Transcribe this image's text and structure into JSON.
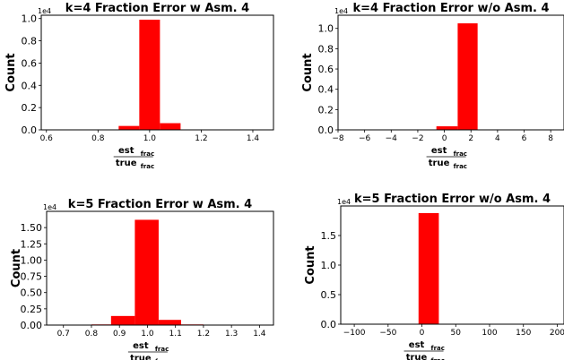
{
  "chart_data": [
    {
      "type": "bar",
      "title": "k=4 Fraction Error w Asm. 4",
      "ylabel": "Count",
      "xlabel_num": "est",
      "xlabel_den": "true",
      "xlabel_sub": "frac",
      "sci_label": "1e4",
      "xlim": [
        0.58,
        1.48
      ],
      "ylim": [
        0,
        1.03
      ],
      "xticks": [
        "0.6",
        "0.8",
        "1.0",
        "1.2",
        "1.4"
      ],
      "xtick_values": [
        0.6,
        0.8,
        1.0,
        1.2,
        1.4
      ],
      "yticks": [
        "0.0",
        "0.2",
        "0.4",
        "0.6",
        "0.8",
        "1.0"
      ],
      "ytick_values": [
        0,
        0.2,
        0.4,
        0.6,
        0.8,
        1.0
      ],
      "bins": [
        {
          "x0": 0.88,
          "x1": 0.96,
          "value": 0.035
        },
        {
          "x0": 0.96,
          "x1": 1.04,
          "value": 0.99
        },
        {
          "x0": 1.04,
          "x1": 1.12,
          "value": 0.06
        }
      ]
    },
    {
      "type": "bar",
      "title": "k=4 Fraction Error w/o Asm. 4",
      "ylabel": "Count",
      "xlabel_num": "est",
      "xlabel_den": "true",
      "xlabel_sub": "frac",
      "sci_label": "1e4",
      "xlim": [
        -8,
        9
      ],
      "ylim": [
        0,
        1.13
      ],
      "xticks": [
        "−8",
        "−6",
        "−4",
        "−2",
        "0",
        "2",
        "4",
        "6",
        "8"
      ],
      "xtick_values": [
        -8,
        -6,
        -4,
        -2,
        0,
        2,
        4,
        6,
        8
      ],
      "yticks": [
        "0.0",
        "0.2",
        "0.4",
        "0.6",
        "0.8",
        "1.0"
      ],
      "ytick_values": [
        0,
        0.2,
        0.4,
        0.6,
        0.8,
        1.0
      ],
      "bins": [
        {
          "x0": -0.6,
          "x1": 1.0,
          "value": 0.035
        },
        {
          "x0": 1.0,
          "x1": 2.5,
          "value": 1.05
        }
      ]
    },
    {
      "type": "bar",
      "title": "k=5 Fraction Error w Asm. 4",
      "ylabel": "Count",
      "xlabel_num": "est",
      "xlabel_den": "true",
      "xlabel_sub": "frac",
      "sci_label": "1e4",
      "xlim": [
        0.64,
        1.45
      ],
      "ylim": [
        0,
        1.75
      ],
      "xticks": [
        "0.7",
        "0.8",
        "0.9",
        "1.0",
        "1.1",
        "1.2",
        "1.3",
        "1.4"
      ],
      "xtick_values": [
        0.7,
        0.8,
        0.9,
        1.0,
        1.1,
        1.2,
        1.3,
        1.4
      ],
      "yticks": [
        "0.00",
        "0.25",
        "0.50",
        "0.75",
        "1.00",
        "1.25",
        "1.50"
      ],
      "ytick_values": [
        0,
        0.25,
        0.5,
        0.75,
        1.0,
        1.25,
        1.5
      ],
      "bins": [
        {
          "x0": 0.8,
          "x1": 0.87,
          "value": 0.01
        },
        {
          "x0": 0.87,
          "x1": 0.955,
          "value": 0.14
        },
        {
          "x0": 0.955,
          "x1": 1.04,
          "value": 1.62
        },
        {
          "x0": 1.04,
          "x1": 1.12,
          "value": 0.08
        },
        {
          "x0": 1.12,
          "x1": 1.2,
          "value": 0.01
        }
      ]
    },
    {
      "type": "bar",
      "title": "k=5 Fraction Error w/o Asm. 4",
      "ylabel": "Count",
      "xlabel_num": "est",
      "xlabel_den": "true",
      "xlabel_sub": "frac",
      "sci_label": "1e4",
      "xlim": [
        -120,
        210
      ],
      "ylim": [
        0,
        2.0
      ],
      "xticks": [
        "−100",
        "−50",
        "0",
        "50",
        "100",
        "150",
        "200"
      ],
      "xtick_values": [
        -100,
        -50,
        0,
        50,
        100,
        150,
        200
      ],
      "yticks": [
        "0.0",
        "0.5",
        "1.0",
        "1.5"
      ],
      "ytick_values": [
        0,
        0.5,
        1.0,
        1.5
      ],
      "bins": [
        {
          "x0": -5,
          "x1": 25,
          "value": 1.88
        }
      ]
    }
  ],
  "colors": {
    "bar": "#ff0000",
    "axis": "#000000"
  }
}
